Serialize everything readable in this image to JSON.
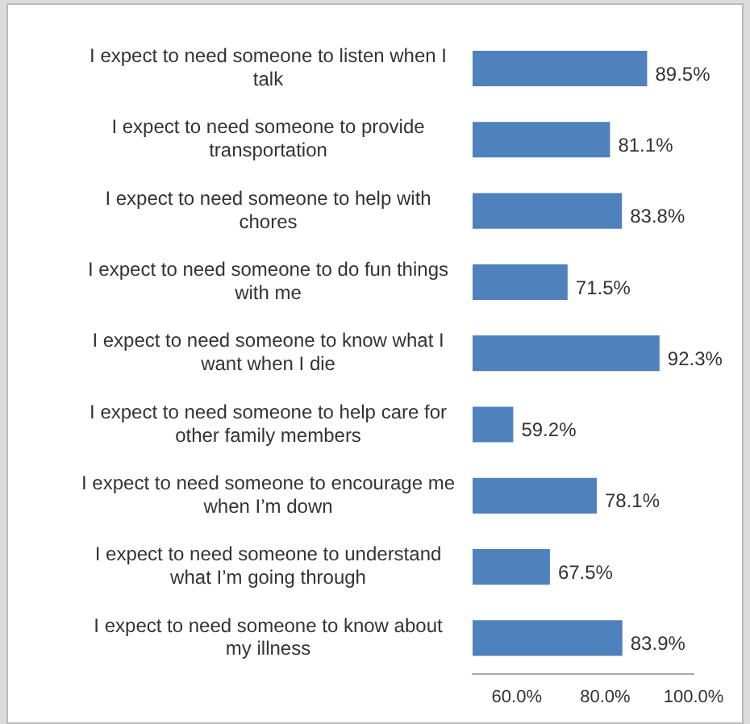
{
  "chart_data": {
    "type": "bar",
    "orientation": "horizontal",
    "categories": [
      "I expect to need someone to listen when I talk",
      "I expect to need someone to provide transportation",
      "I expect to need someone to help with chores",
      "I expect to need someone to do fun things with me",
      "I expect to need someone to know what I want when I die",
      "I expect to need someone to help care for other family members",
      "I expect to need someone to encourage me when I’m down",
      "I expect to need someone to understand what I’m going through",
      "I expect to need someone to know about my illness"
    ],
    "values": [
      89.5,
      81.1,
      83.8,
      71.5,
      92.3,
      59.2,
      78.1,
      67.5,
      83.9
    ],
    "value_labels": [
      "89.5%",
      "81.1%",
      "83.8%",
      "71.5%",
      "92.3%",
      "59.2%",
      "78.1%",
      "67.5%",
      "83.9%"
    ],
    "color": "#4f81bd",
    "xlim": [
      50,
      100
    ],
    "xticks": [
      {
        "value": 60,
        "label": "60.0%"
      },
      {
        "value": 80,
        "label": "80.0%"
      },
      {
        "value": 100,
        "label": "100.0%"
      }
    ],
    "grid": false,
    "legend": false
  }
}
